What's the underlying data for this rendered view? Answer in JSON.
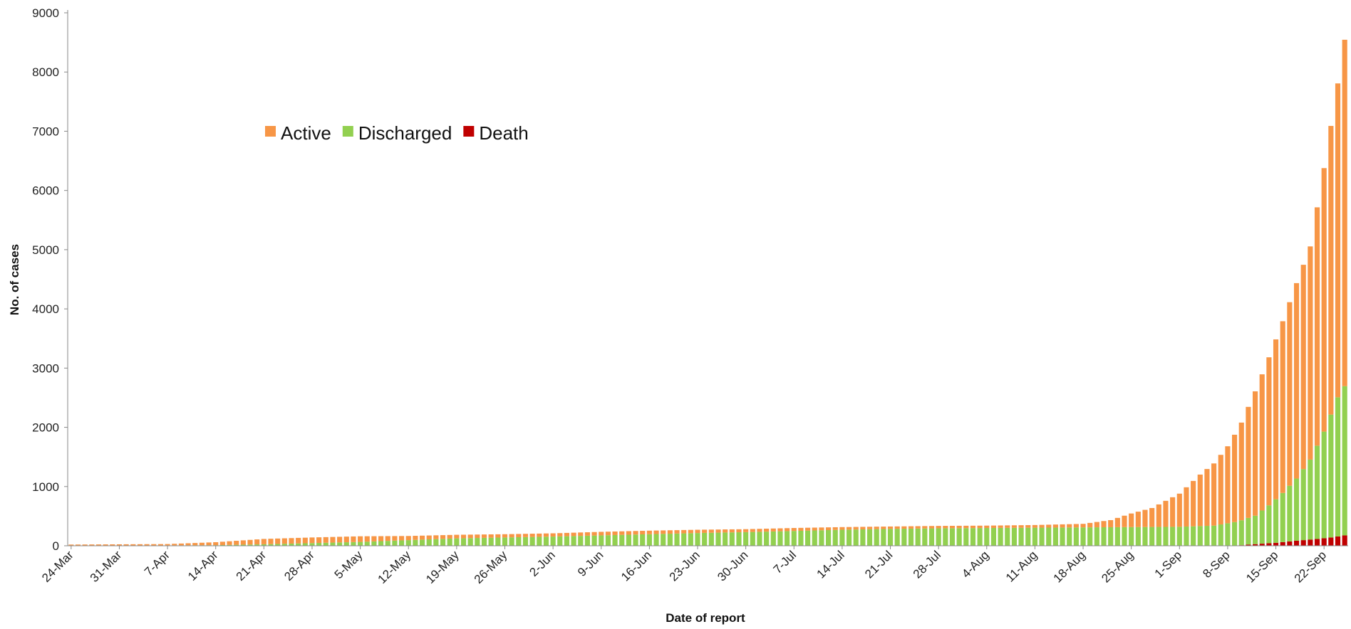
{
  "chart_data": {
    "type": "bar",
    "stacked": true,
    "xlabel": "Date of report",
    "ylabel": "No. of cases",
    "ylim": [
      0,
      9000
    ],
    "yticks": [
      0,
      1000,
      2000,
      3000,
      4000,
      5000,
      6000,
      7000,
      8000,
      9000
    ],
    "xticks": [
      "24-Mar",
      "31-Mar",
      "7-Apr",
      "14-Apr",
      "21-Apr",
      "28-Apr",
      "5-May",
      "12-May",
      "19-May",
      "26-May",
      "2-Jun",
      "9-Jun",
      "16-Jun",
      "23-Jun",
      "30-Jun",
      "7-Jul",
      "14-Jul",
      "21-Jul",
      "28-Jul",
      "4-Aug",
      "11-Aug",
      "18-Aug",
      "25-Aug",
      "1-Sep",
      "8-Sep",
      "15-Sep",
      "22-Sep"
    ],
    "first_date": "24-Mar",
    "last_date": "25-Sep",
    "grid": false,
    "legend": {
      "position": "top-left",
      "entries": [
        "Active",
        "Discharged",
        "Death"
      ]
    },
    "colors": {
      "Active": "#f79646",
      "Discharged": "#92d050",
      "Death": "#c00000"
    },
    "series": [
      {
        "name": "Death",
        "knots": [
          [
            "24-Mar",
            0
          ],
          [
            "9-Sep",
            0
          ],
          [
            "11-Sep",
            20
          ],
          [
            "15-Sep",
            50
          ],
          [
            "18-Sep",
            85
          ],
          [
            "21-Sep",
            115
          ],
          [
            "23-Sep",
            140
          ],
          [
            "25-Sep",
            175
          ]
        ]
      },
      {
        "name": "Discharged",
        "knots": [
          [
            "24-Mar",
            0
          ],
          [
            "14-Apr",
            10
          ],
          [
            "21-Apr",
            25
          ],
          [
            "28-Apr",
            45
          ],
          [
            "5-May",
            65
          ],
          [
            "12-May",
            95
          ],
          [
            "19-May",
            125
          ],
          [
            "26-May",
            140
          ],
          [
            "2-Jun",
            155
          ],
          [
            "9-Jun",
            175
          ],
          [
            "16-Jun",
            195
          ],
          [
            "23-Jun",
            215
          ],
          [
            "30-Jun",
            230
          ],
          [
            "7-Jul",
            250
          ],
          [
            "14-Jul",
            270
          ],
          [
            "21-Jul",
            285
          ],
          [
            "28-Jul",
            295
          ],
          [
            "4-Aug",
            300
          ],
          [
            "11-Aug",
            305
          ],
          [
            "18-Aug",
            310
          ],
          [
            "25-Aug",
            315
          ],
          [
            "1-Sep",
            320
          ],
          [
            "6-Sep",
            340
          ],
          [
            "8-Sep",
            380
          ],
          [
            "10-Sep",
            420
          ],
          [
            "12-Sep",
            480
          ],
          [
            "14-Sep",
            640
          ],
          [
            "16-Sep",
            830
          ],
          [
            "18-Sep",
            1050
          ],
          [
            "20-Sep",
            1350
          ],
          [
            "22-Sep",
            1800
          ],
          [
            "24-Sep",
            2350
          ],
          [
            "25-Sep",
            2520
          ]
        ]
      },
      {
        "name": "Active",
        "knots": [
          [
            "24-Mar",
            20
          ],
          [
            "7-Apr",
            22
          ],
          [
            "14-Apr",
            50
          ],
          [
            "21-Apr",
            90
          ],
          [
            "28-Apr",
            95
          ],
          [
            "5-May",
            95
          ],
          [
            "12-May",
            70
          ],
          [
            "19-May",
            60
          ],
          [
            "26-May",
            55
          ],
          [
            "2-Jun",
            55
          ],
          [
            "9-Jun",
            60
          ],
          [
            "16-Jun",
            60
          ],
          [
            "23-Jun",
            55
          ],
          [
            "30-Jun",
            50
          ],
          [
            "7-Jul",
            50
          ],
          [
            "14-Jul",
            45
          ],
          [
            "21-Jul",
            40
          ],
          [
            "28-Jul",
            40
          ],
          [
            "4-Aug",
            40
          ],
          [
            "11-Aug",
            45
          ],
          [
            "18-Aug",
            60
          ],
          [
            "22-Aug",
            120
          ],
          [
            "25-Aug",
            230
          ],
          [
            "28-Aug",
            320
          ],
          [
            "1-Sep",
            560
          ],
          [
            "4-Sep",
            870
          ],
          [
            "6-Sep",
            1050
          ],
          [
            "8-Sep",
            1300
          ],
          [
            "10-Sep",
            1650
          ],
          [
            "12-Sep",
            2100
          ],
          [
            "14-Sep",
            2500
          ],
          [
            "16-Sep",
            2900
          ],
          [
            "18-Sep",
            3300
          ],
          [
            "20-Sep",
            3600
          ],
          [
            "22-Sep",
            4450
          ],
          [
            "24-Sep",
            5300
          ],
          [
            "25-Sep",
            5850
          ]
        ]
      }
    ]
  }
}
